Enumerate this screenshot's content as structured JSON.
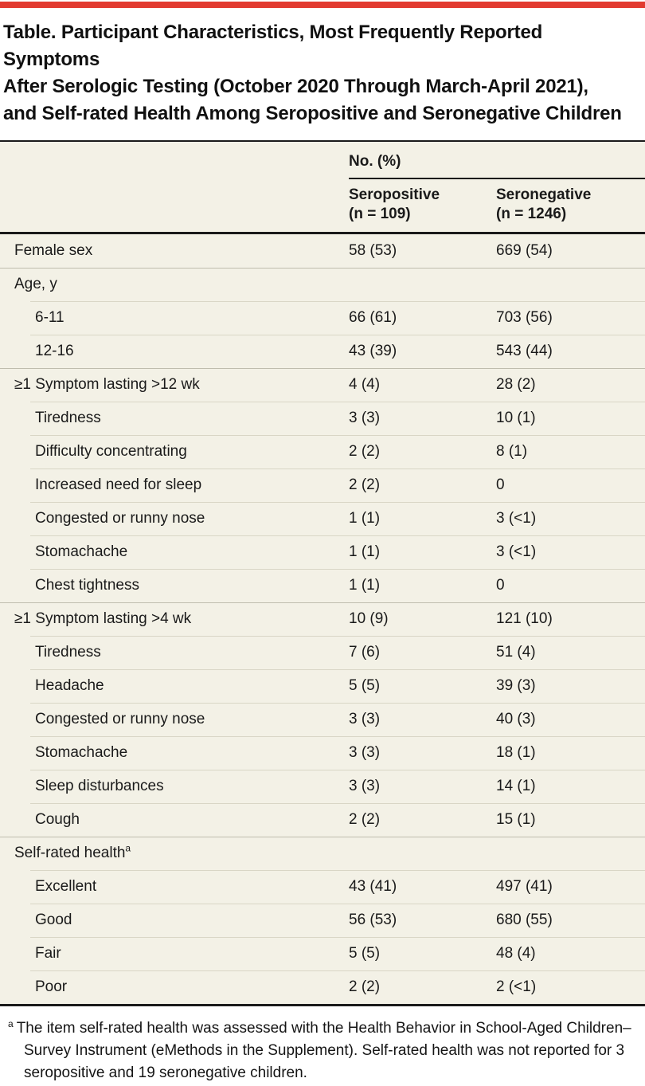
{
  "colors": {
    "accent_red": "#e23a30",
    "table_background": "#f3f1e6",
    "sub_divider": "#d9d6c6",
    "group_divider": "#bfbdae",
    "rule_dark": "#1a1a1a"
  },
  "title_lines": [
    "Table. Participant Characteristics, Most Frequently Reported Symptoms",
    "After Serologic Testing (October 2020 Through March-April 2021),",
    "and Self-rated Health Among Seropositive and Seronegative Children"
  ],
  "table": {
    "column_group_label": "No. (%)",
    "columns": [
      {
        "name": "Seropositive",
        "n": "(n = 109)"
      },
      {
        "name": "Seronegative",
        "n": "(n = 1246)"
      }
    ],
    "rows": [
      {
        "label": "Female sex",
        "indent": false,
        "group": false,
        "seropositive": "58 (53)",
        "seronegative": "669 (54)"
      },
      {
        "label": "Age, y",
        "indent": false,
        "group": true,
        "seropositive": "",
        "seronegative": ""
      },
      {
        "label": "6-11",
        "indent": true,
        "group": false,
        "seropositive": "66 (61)",
        "seronegative": "703 (56)"
      },
      {
        "label": "12-16",
        "indent": true,
        "group": false,
        "seropositive": "43 (39)",
        "seronegative": "543 (44)"
      },
      {
        "label": "≥1 Symptom lasting >12 wk",
        "indent": false,
        "group": true,
        "seropositive": "4 (4)",
        "seronegative": "28 (2)"
      },
      {
        "label": "Tiredness",
        "indent": true,
        "group": false,
        "seropositive": "3 (3)",
        "seronegative": "10 (1)"
      },
      {
        "label": "Difficulty concentrating",
        "indent": true,
        "group": false,
        "seropositive": "2 (2)",
        "seronegative": "8 (1)"
      },
      {
        "label": "Increased need for sleep",
        "indent": true,
        "group": false,
        "seropositive": "2 (2)",
        "seronegative": "0"
      },
      {
        "label": "Congested or runny nose",
        "indent": true,
        "group": false,
        "seropositive": "1 (1)",
        "seronegative": "3 (<1)"
      },
      {
        "label": "Stomachache",
        "indent": true,
        "group": false,
        "seropositive": "1 (1)",
        "seronegative": "3 (<1)"
      },
      {
        "label": "Chest tightness",
        "indent": true,
        "group": false,
        "seropositive": "1 (1)",
        "seronegative": "0"
      },
      {
        "label": "≥1 Symptom lasting >4 wk",
        "indent": false,
        "group": true,
        "seropositive": "10 (9)",
        "seronegative": "121 (10)"
      },
      {
        "label": "Tiredness",
        "indent": true,
        "group": false,
        "seropositive": "7 (6)",
        "seronegative": "51 (4)"
      },
      {
        "label": "Headache",
        "indent": true,
        "group": false,
        "seropositive": "5 (5)",
        "seronegative": "39 (3)"
      },
      {
        "label": "Congested or runny nose",
        "indent": true,
        "group": false,
        "seropositive": "3 (3)",
        "seronegative": "40 (3)"
      },
      {
        "label": "Stomachache",
        "indent": true,
        "group": false,
        "seropositive": "3 (3)",
        "seronegative": "18 (1)"
      },
      {
        "label": "Sleep disturbances",
        "indent": true,
        "group": false,
        "seropositive": "3 (3)",
        "seronegative": "14 (1)"
      },
      {
        "label": "Cough",
        "indent": true,
        "group": false,
        "seropositive": "2 (2)",
        "seronegative": "15 (1)"
      },
      {
        "label": "Self-rated health",
        "indent": false,
        "group": true,
        "sup": "a",
        "seropositive": "",
        "seronegative": ""
      },
      {
        "label": "Excellent",
        "indent": true,
        "group": false,
        "seropositive": "43 (41)",
        "seronegative": "497 (41)"
      },
      {
        "label": "Good",
        "indent": true,
        "group": false,
        "seropositive": "56 (53)",
        "seronegative": "680 (55)"
      },
      {
        "label": "Fair",
        "indent": true,
        "group": false,
        "seropositive": "5 (5)",
        "seronegative": "48 (4)"
      },
      {
        "label": "Poor",
        "indent": true,
        "group": false,
        "seropositive": "2 (2)",
        "seronegative": "2 (<1)"
      }
    ]
  },
  "footnote": {
    "marker": "a",
    "text": "The item self-rated health was assessed with the Health Behavior in School-Aged Children–Survey Instrument (eMethods in the Supplement). Self-rated health was not reported for 3 seropositive and 19 seronegative children."
  }
}
